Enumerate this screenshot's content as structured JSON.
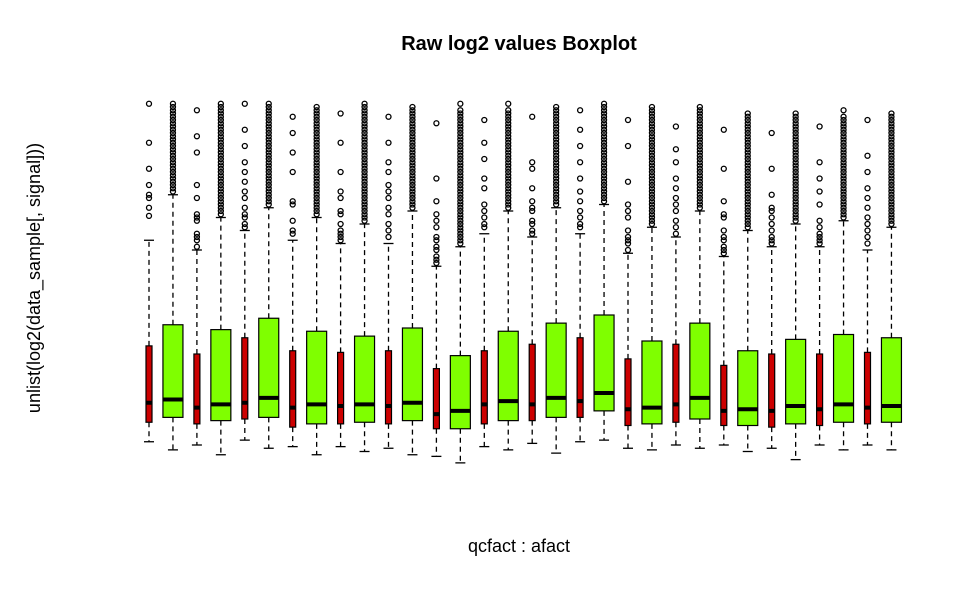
{
  "chart_data": {
    "type": "boxplot",
    "title": "Raw log2 values Boxplot",
    "xlabel": "qcfact : afact",
    "ylabel": "unlist(log2(data_sample[, signal]))",
    "axes_drawn": false,
    "colors": {
      "red_box": "#CC0000",
      "green_box": "#7FFF00",
      "outline": "#000000"
    },
    "value_note": "values estimated on a relative 0-100 scale (no axis printed)",
    "groups": [
      {
        "fill": "red",
        "lower_whisker": 5.0,
        "q1": 11.0,
        "median": 17.0,
        "q3": 34.5,
        "upper_whisker": 67.0,
        "outliers": [
          74.5,
          77.0,
          80.0,
          81.0,
          84.0,
          89.0,
          97.0,
          109.0
        ]
      },
      {
        "fill": "green",
        "lower_whisker": 2.5,
        "q1": 12.5,
        "median": 18.0,
        "q3": 41.0,
        "upper_whisker": 81.0,
        "outliers": [
          82,
          83,
          84,
          85,
          86,
          87,
          88,
          89,
          90,
          91,
          92,
          93,
          94,
          95,
          96,
          97,
          98,
          99,
          100,
          101,
          102,
          103,
          104,
          105,
          106,
          107,
          108,
          109
        ]
      },
      {
        "fill": "red",
        "lower_whisker": 4.0,
        "q1": 10.5,
        "median": 15.5,
        "q3": 32.0,
        "upper_whisker": 64.0,
        "outliers": [
          65,
          67,
          68,
          69,
          73,
          74,
          75,
          80,
          84,
          94,
          99,
          107
        ]
      },
      {
        "fill": "green",
        "lower_whisker": 1.0,
        "q1": 11.5,
        "median": 16.5,
        "q3": 39.5,
        "upper_whisker": 74.0,
        "outliers": [
          75,
          76,
          77,
          78,
          79,
          80,
          81,
          82,
          83,
          84,
          85,
          86,
          87,
          88,
          89,
          90,
          91,
          92,
          93,
          94,
          95,
          96,
          97,
          98,
          99,
          100,
          101,
          102,
          103,
          104,
          105,
          106,
          107,
          108,
          109
        ]
      },
      {
        "fill": "red",
        "lower_whisker": 5.5,
        "q1": 12.0,
        "median": 17.0,
        "q3": 37.0,
        "upper_whisker": 70.0,
        "outliers": [
          71,
          72,
          74,
          75,
          77,
          80,
          82,
          85,
          88,
          91,
          96,
          101,
          109
        ]
      },
      {
        "fill": "green",
        "lower_whisker": 3.0,
        "q1": 12.5,
        "median": 18.5,
        "q3": 43.0,
        "upper_whisker": 77.0,
        "outliers": [
          78,
          79,
          80,
          81,
          82,
          83,
          84,
          85,
          86,
          87,
          88,
          89,
          90,
          91,
          92,
          93,
          94,
          95,
          96,
          97,
          98,
          99,
          100,
          101,
          102,
          103,
          104,
          105,
          106,
          107,
          108,
          109
        ]
      },
      {
        "fill": "red",
        "lower_whisker": 3.5,
        "q1": 9.5,
        "median": 15.5,
        "q3": 33.0,
        "upper_whisker": 67.0,
        "outliers": [
          69,
          70,
          73,
          78,
          79,
          88,
          94,
          100,
          105
        ]
      },
      {
        "fill": "green",
        "lower_whisker": 1.0,
        "q1": 10.5,
        "median": 16.5,
        "q3": 39.0,
        "upper_whisker": 74.0,
        "outliers": [
          75,
          76,
          77,
          78,
          79,
          80,
          81,
          82,
          83,
          84,
          85,
          86,
          87,
          88,
          89,
          90,
          91,
          92,
          93,
          94,
          95,
          96,
          97,
          98,
          99,
          100,
          101,
          102,
          103,
          104,
          105,
          106,
          107,
          108
        ]
      },
      {
        "fill": "red",
        "lower_whisker": 3.5,
        "q1": 10.5,
        "median": 16.0,
        "q3": 32.5,
        "upper_whisker": 66.0,
        "outliers": [
          67,
          68,
          69,
          70,
          72,
          75,
          76,
          80,
          82,
          88,
          97,
          106
        ]
      },
      {
        "fill": "green",
        "lower_whisker": 2.0,
        "q1": 11.0,
        "median": 16.5,
        "q3": 37.5,
        "upper_whisker": 72.0,
        "outliers": [
          73,
          74,
          75,
          76,
          77,
          78,
          79,
          80,
          81,
          82,
          83,
          84,
          85,
          86,
          87,
          88,
          89,
          90,
          91,
          92,
          93,
          94,
          95,
          96,
          97,
          98,
          99,
          100,
          101,
          102,
          103,
          104,
          105,
          106,
          107,
          108,
          109
        ]
      },
      {
        "fill": "red",
        "lower_whisker": 3.0,
        "q1": 10.5,
        "median": 16.0,
        "q3": 33.0,
        "upper_whisker": 66.0,
        "outliers": [
          68,
          70,
          72,
          75,
          77,
          80,
          82,
          84,
          88,
          91,
          97,
          105
        ]
      },
      {
        "fill": "green",
        "lower_whisker": 1.0,
        "q1": 11.5,
        "median": 17.0,
        "q3": 40.0,
        "upper_whisker": 76.0,
        "outliers": [
          77,
          78,
          79,
          80,
          81,
          82,
          83,
          84,
          85,
          86,
          87,
          88,
          89,
          90,
          91,
          92,
          93,
          94,
          95,
          96,
          97,
          98,
          99,
          100,
          101,
          102,
          103,
          104,
          105,
          106,
          107,
          108
        ]
      },
      {
        "fill": "red",
        "lower_whisker": 0.5,
        "q1": 9.0,
        "median": 13.5,
        "q3": 27.5,
        "upper_whisker": 59.0,
        "outliers": [
          60,
          61,
          62,
          64,
          65,
          67,
          68,
          71,
          73,
          75,
          79,
          86,
          103
        ]
      },
      {
        "fill": "green",
        "lower_whisker": -1.5,
        "q1": 9.0,
        "median": 14.5,
        "q3": 31.5,
        "upper_whisker": 65.0,
        "outliers": [
          66,
          67,
          68,
          69,
          70,
          71,
          72,
          73,
          74,
          75,
          76,
          77,
          78,
          79,
          80,
          81,
          82,
          83,
          84,
          85,
          86,
          87,
          88,
          89,
          90,
          91,
          92,
          93,
          94,
          95,
          96,
          97,
          98,
          99,
          100,
          101,
          102,
          103,
          104,
          105,
          106,
          107,
          109
        ]
      },
      {
        "fill": "red",
        "lower_whisker": 3.5,
        "q1": 10.5,
        "median": 16.5,
        "q3": 33.0,
        "upper_whisker": 69.0,
        "outliers": [
          71,
          72,
          74,
          76,
          78,
          83,
          86,
          92,
          97,
          104
        ]
      },
      {
        "fill": "green",
        "lower_whisker": 2.5,
        "q1": 11.5,
        "median": 17.5,
        "q3": 39.0,
        "upper_whisker": 76.0,
        "outliers": [
          77,
          78,
          79,
          80,
          81,
          82,
          83,
          84,
          85,
          86,
          87,
          88,
          89,
          90,
          91,
          92,
          93,
          94,
          95,
          96,
          97,
          98,
          99,
          100,
          101,
          102,
          103,
          104,
          105,
          106,
          107,
          109
        ]
      },
      {
        "fill": "red",
        "lower_whisker": 4.5,
        "q1": 11.5,
        "median": 16.5,
        "q3": 35.0,
        "upper_whisker": 68.0,
        "outliers": [
          69,
          70,
          72,
          73,
          76,
          77,
          79,
          83,
          89,
          91,
          105
        ]
      },
      {
        "fill": "green",
        "lower_whisker": 1.5,
        "q1": 12.5,
        "median": 18.5,
        "q3": 41.5,
        "upper_whisker": 77.0,
        "outliers": [
          78,
          79,
          80,
          81,
          82,
          83,
          84,
          85,
          86,
          87,
          88,
          89,
          90,
          91,
          92,
          93,
          94,
          95,
          96,
          97,
          98,
          99,
          100,
          101,
          102,
          103,
          104,
          105,
          106,
          107,
          108
        ]
      },
      {
        "fill": "red",
        "lower_whisker": 5.0,
        "q1": 12.5,
        "median": 17.5,
        "q3": 37.0,
        "upper_whisker": 69.0,
        "outliers": [
          71,
          72,
          74,
          76,
          79,
          82,
          86,
          91,
          96,
          101,
          107
        ]
      },
      {
        "fill": "green",
        "lower_whisker": 5.5,
        "q1": 14.5,
        "median": 20.0,
        "q3": 44.0,
        "upper_whisker": 78.0,
        "outliers": [
          79,
          80,
          81,
          82,
          83,
          84,
          85,
          86,
          87,
          88,
          89,
          90,
          91,
          92,
          93,
          94,
          95,
          96,
          97,
          98,
          99,
          100,
          101,
          102,
          103,
          104,
          105,
          106,
          107,
          108,
          109
        ]
      },
      {
        "fill": "red",
        "lower_whisker": 3.0,
        "q1": 10.0,
        "median": 15.0,
        "q3": 30.5,
        "upper_whisker": 63.0,
        "outliers": [
          64,
          66,
          67,
          68,
          70,
          74,
          76,
          78,
          85,
          96,
          104
        ]
      },
      {
        "fill": "green",
        "lower_whisker": 2.5,
        "q1": 10.5,
        "median": 15.5,
        "q3": 36.0,
        "upper_whisker": 71.0,
        "outliers": [
          72,
          73,
          74,
          75,
          76,
          77,
          78,
          79,
          80,
          81,
          82,
          83,
          84,
          85,
          86,
          87,
          88,
          89,
          90,
          91,
          92,
          93,
          94,
          95,
          96,
          97,
          98,
          99,
          100,
          101,
          102,
          103,
          104,
          105,
          106,
          107,
          108
        ]
      },
      {
        "fill": "red",
        "lower_whisker": 4.0,
        "q1": 11.0,
        "median": 16.5,
        "q3": 35.0,
        "upper_whisker": 68.0,
        "outliers": [
          69,
          71,
          73,
          76,
          78,
          80,
          83,
          86,
          91,
          95,
          102
        ]
      },
      {
        "fill": "green",
        "lower_whisker": 3.0,
        "q1": 12.0,
        "median": 18.5,
        "q3": 41.5,
        "upper_whisker": 76.0,
        "outliers": [
          77,
          78,
          79,
          80,
          81,
          82,
          83,
          84,
          85,
          86,
          87,
          88,
          89,
          90,
          91,
          92,
          93,
          94,
          95,
          96,
          97,
          98,
          99,
          100,
          101,
          102,
          103,
          104,
          105,
          106,
          107,
          108
        ]
      },
      {
        "fill": "red",
        "lower_whisker": 4.0,
        "q1": 10.0,
        "median": 14.5,
        "q3": 28.5,
        "upper_whisker": 62.0,
        "outliers": [
          63,
          64,
          65,
          67,
          68,
          70,
          74,
          75,
          79,
          89,
          101
        ]
      },
      {
        "fill": "green",
        "lower_whisker": 2.0,
        "q1": 10.0,
        "median": 15.0,
        "q3": 33.0,
        "upper_whisker": 70.0,
        "outliers": [
          71,
          72,
          73,
          74,
          75,
          76,
          77,
          78,
          79,
          80,
          81,
          82,
          83,
          84,
          85,
          86,
          87,
          88,
          89,
          90,
          91,
          92,
          93,
          94,
          95,
          96,
          97,
          98,
          99,
          100,
          101,
          102,
          103,
          104,
          105,
          106
        ]
      },
      {
        "fill": "red",
        "lower_whisker": 3.0,
        "q1": 9.5,
        "median": 14.5,
        "q3": 32.0,
        "upper_whisker": 65.0,
        "outliers": [
          66,
          67,
          68,
          70,
          72,
          74,
          76,
          77,
          81,
          89,
          100
        ]
      },
      {
        "fill": "green",
        "lower_whisker": -0.5,
        "q1": 10.5,
        "median": 16.0,
        "q3": 36.5,
        "upper_whisker": 72.0,
        "outliers": [
          73,
          74,
          75,
          76,
          77,
          78,
          79,
          80,
          81,
          82,
          83,
          84,
          85,
          86,
          87,
          88,
          89,
          90,
          91,
          92,
          93,
          94,
          95,
          96,
          97,
          98,
          99,
          100,
          101,
          102,
          103,
          104,
          105,
          106
        ]
      },
      {
        "fill": "red",
        "lower_whisker": 4.0,
        "q1": 10.0,
        "median": 15.0,
        "q3": 32.0,
        "upper_whisker": 65.0,
        "outliers": [
          66,
          67,
          68,
          69,
          71,
          73,
          78,
          82,
          86,
          91,
          102
        ]
      },
      {
        "fill": "green",
        "lower_whisker": 2.5,
        "q1": 11.0,
        "median": 16.5,
        "q3": 38.0,
        "upper_whisker": 73.0,
        "outliers": [
          74,
          75,
          76,
          77,
          78,
          79,
          80,
          81,
          82,
          83,
          84,
          85,
          86,
          87,
          88,
          89,
          90,
          91,
          92,
          93,
          94,
          95,
          96,
          97,
          98,
          99,
          100,
          101,
          102,
          103,
          104,
          105,
          107
        ]
      },
      {
        "fill": "red",
        "lower_whisker": 4.0,
        "q1": 10.5,
        "median": 15.5,
        "q3": 32.5,
        "upper_whisker": 64.0,
        "outliers": [
          66,
          68,
          70,
          72,
          74,
          77,
          80,
          83,
          88,
          93,
          104
        ]
      },
      {
        "fill": "green",
        "lower_whisker": 2.5,
        "q1": 11.0,
        "median": 16.0,
        "q3": 37.0,
        "upper_whisker": 71.0,
        "outliers": [
          72,
          73,
          74,
          75,
          76,
          77,
          78,
          79,
          80,
          81,
          82,
          83,
          84,
          85,
          86,
          87,
          88,
          89,
          90,
          91,
          92,
          93,
          94,
          95,
          96,
          97,
          98,
          99,
          100,
          101,
          102,
          103,
          104,
          105,
          106
        ]
      }
    ]
  }
}
